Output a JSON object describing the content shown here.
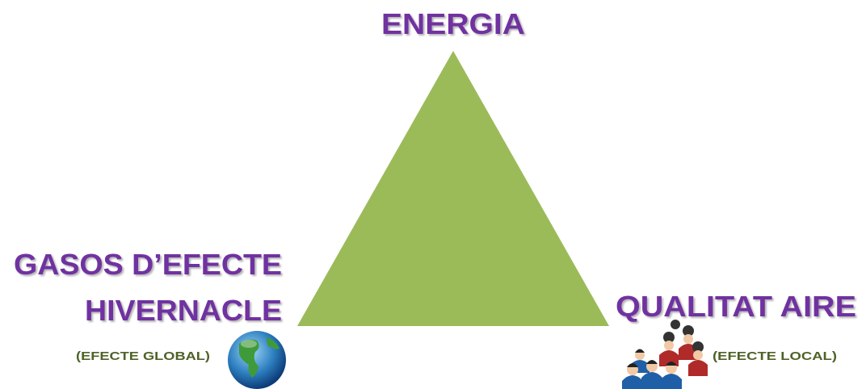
{
  "nodes": {
    "top": {
      "label": "ENERGIA"
    },
    "left": {
      "label_lines": [
        "GASOS D’EFECTE",
        "HIVERNACLE"
      ],
      "note": "(EFECTE GLOBAL)"
    },
    "right": {
      "label": "QUALITAT AIRE",
      "note": "(EFECTE LOCAL)"
    }
  }
}
